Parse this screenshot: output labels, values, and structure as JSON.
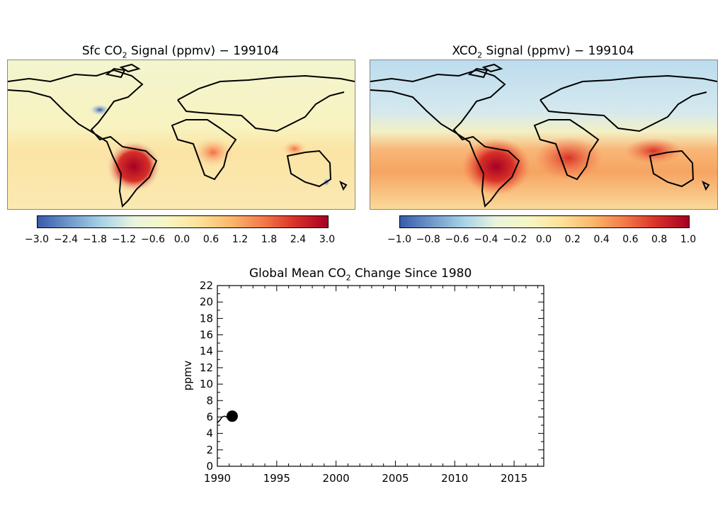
{
  "maps": [
    {
      "title_prefix": "Sfc CO",
      "title_sub": "2",
      "title_suffix": " Signal (ppmv) − 199104",
      "colorbar_ticks": [
        "−3.0",
        "−2.4",
        "−1.8",
        "−1.2",
        "−0.6",
        "0.0",
        "0.6",
        "1.2",
        "1.8",
        "2.4",
        "3.0"
      ]
    },
    {
      "title_prefix": "XCO",
      "title_sub": "2",
      "title_suffix": " Signal (ppmv) − 199104",
      "colorbar_ticks": [
        "−1.0",
        "−0.8",
        "−0.6",
        "−0.4",
        "−0.2",
        "0.0",
        "0.2",
        "0.4",
        "0.6",
        "0.8",
        "1.0"
      ]
    }
  ],
  "colors": {
    "low": "#3a5bab",
    "mid_low": "#a9d3e8",
    "neutral": "#f6f6c4",
    "mid_high": "#f6b26b",
    "high": "#a50026"
  },
  "chart_data": {
    "type": "line",
    "title_prefix": "Global Mean CO",
    "title_sub": "2",
    "title_suffix": " Change Since 1980",
    "ylabel": "ppmv",
    "xlabel": "",
    "xlim": [
      1990,
      2017.5
    ],
    "ylim": [
      0,
      22
    ],
    "xticks": [
      1990,
      1995,
      2000,
      2005,
      2010,
      2015
    ],
    "yticks": [
      0,
      2,
      4,
      6,
      8,
      10,
      12,
      14,
      16,
      18,
      20,
      22
    ],
    "series": [
      {
        "x": [
          1990.0,
          1990.2,
          1990.4,
          1990.6,
          1990.8,
          1991.0,
          1991.25
        ],
        "y": [
          5.3,
          5.6,
          6.0,
          6.1,
          6.0,
          6.1,
          6.1
        ]
      }
    ],
    "current_point": {
      "x": 1991.25,
      "y": 6.1
    }
  }
}
